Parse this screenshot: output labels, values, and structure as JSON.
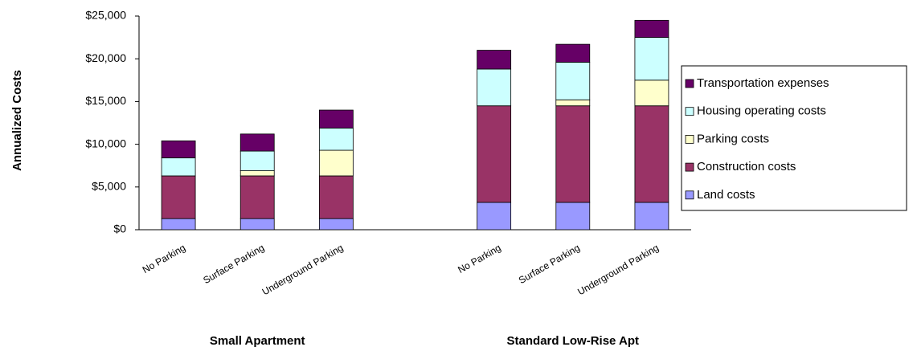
{
  "chart_data": {
    "type": "stacked_bar",
    "y_label": "Annualized Costs",
    "categories": [
      "No Parking",
      "Surface Parking",
      "Underground Parking",
      null,
      "No Parking",
      "Surface Parking",
      "Underground Parking"
    ],
    "group_labels": [
      "Small Apartment",
      "Standard Low-Rise Apt"
    ],
    "series": [
      {
        "name": "Land costs",
        "color": "#9999ff",
        "values": [
          1300,
          1300,
          1300,
          null,
          3200,
          3200,
          3200
        ]
      },
      {
        "name": "Construction costs",
        "color": "#993366",
        "values": [
          5000,
          5000,
          5000,
          null,
          11300,
          11300,
          11300
        ]
      },
      {
        "name": "Parking costs",
        "color": "#ffffcc",
        "values": [
          0,
          600,
          3000,
          null,
          0,
          700,
          3000
        ]
      },
      {
        "name": "Housing operating costs",
        "color": "#ccffff",
        "values": [
          2100,
          2300,
          2600,
          null,
          4300,
          4400,
          5000
        ]
      },
      {
        "name": "Transportation expenses",
        "color": "#660066",
        "values": [
          2000,
          2000,
          2100,
          null,
          2200,
          2100,
          2000
        ]
      }
    ],
    "ylim": [
      0,
      25000
    ],
    "yticks": [
      {
        "value": 0,
        "label": "$0"
      },
      {
        "value": 5000,
        "label": "$5,000"
      },
      {
        "value": 10000,
        "label": "$10,000"
      },
      {
        "value": 15000,
        "label": "$15,000"
      },
      {
        "value": 20000,
        "label": "$20,000"
      },
      {
        "value": 25000,
        "label": "$25,000"
      }
    ],
    "grid": false,
    "legend": "right"
  }
}
